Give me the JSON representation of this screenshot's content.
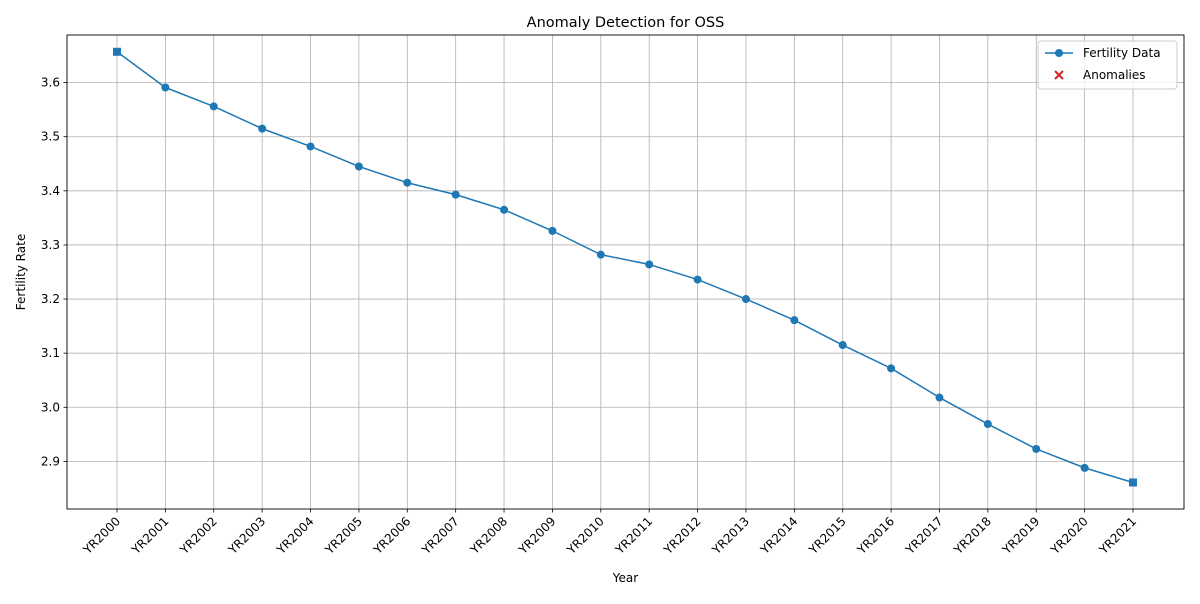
{
  "chart_data": {
    "type": "line",
    "title": "Anomaly Detection for OSS",
    "xlabel": "Year",
    "ylabel": "Fertility Rate",
    "categories": [
      "YR2000",
      "YR2001",
      "YR2002",
      "YR2003",
      "YR2004",
      "YR2005",
      "YR2006",
      "YR2007",
      "YR2008",
      "YR2009",
      "YR2010",
      "YR2011",
      "YR2012",
      "YR2013",
      "YR2014",
      "YR2015",
      "YR2016",
      "YR2017",
      "YR2018",
      "YR2019",
      "YR2020",
      "YR2021"
    ],
    "series": [
      {
        "name": "Fertility Data",
        "color": "#1f77b4",
        "marker": "circle",
        "values": [
          3.657,
          3.591,
          3.556,
          3.515,
          3.482,
          3.445,
          3.415,
          3.393,
          3.365,
          3.326,
          3.282,
          3.264,
          3.236,
          3.2,
          3.161,
          3.115,
          3.072,
          3.018,
          2.969,
          2.923,
          2.888,
          2.861
        ]
      }
    ],
    "anomalies": {
      "name": "Anomalies",
      "color": "#d62728",
      "marker": "x",
      "points": []
    },
    "square_marker_categories": [
      "YR2000",
      "YR2021"
    ],
    "ylim": [
      2.812,
      3.688
    ],
    "yticks": [
      2.9,
      3.0,
      3.1,
      3.2,
      3.3,
      3.4,
      3.5,
      3.6
    ],
    "ytick_labels": [
      "2.9",
      "3.0",
      "3.1",
      "3.2",
      "3.3",
      "3.4",
      "3.5",
      "3.6"
    ],
    "grid": true,
    "legend_position": "top-right"
  }
}
